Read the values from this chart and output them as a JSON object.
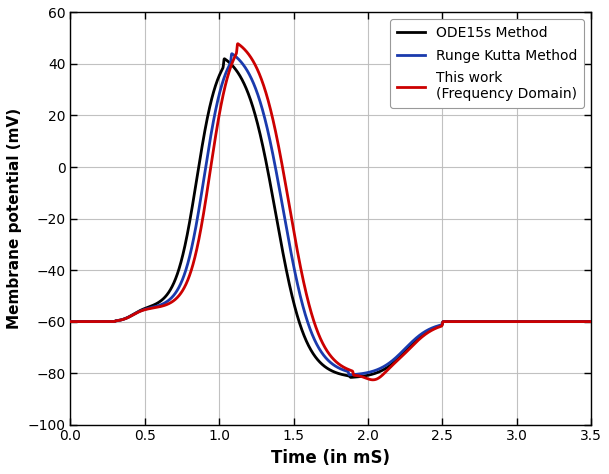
{
  "title": "",
  "xlabel": "Time (in mS)",
  "ylabel": "Membrane potential (mV)",
  "xlim": [
    0,
    3.5
  ],
  "ylim": [
    -100,
    60
  ],
  "xticks": [
    0,
    0.5,
    1.0,
    1.5,
    2.0,
    2.5,
    3.0,
    3.5
  ],
  "yticks": [
    -100,
    -80,
    -60,
    -40,
    -20,
    0,
    20,
    40,
    60
  ],
  "legend": [
    "ODE15s Method",
    "Runge Kutta Method",
    "This work\n(Frequency Domain)"
  ],
  "colors": [
    "black",
    "#1a3aad",
    "#cc0000"
  ],
  "linewidths": [
    2.0,
    2.0,
    2.0
  ],
  "background_color": "#ffffff",
  "grid_color": "#bbbbbb"
}
